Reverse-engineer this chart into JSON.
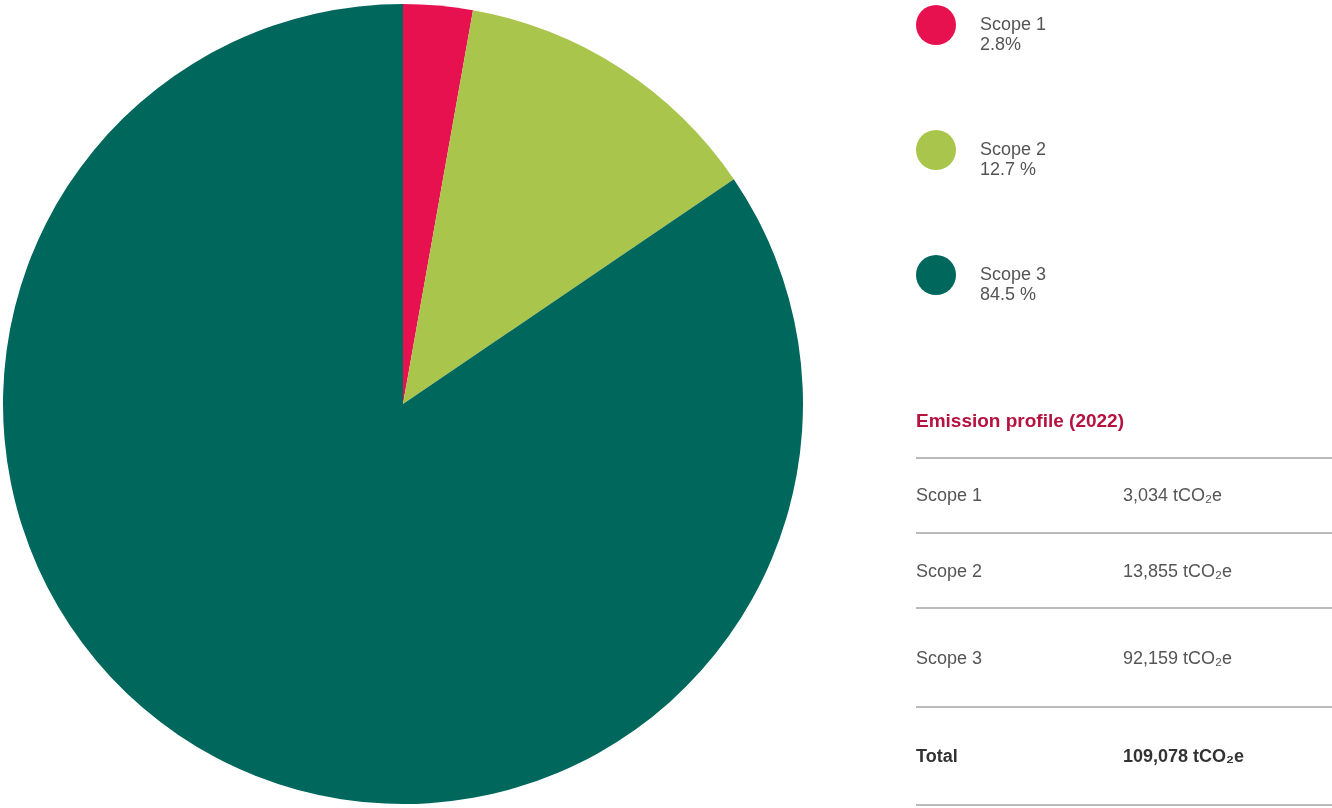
{
  "chart_data": {
    "type": "pie",
    "categories": [
      "Scope 1",
      "Scope 2",
      "Scope 3"
    ],
    "values": [
      2.8,
      12.7,
      84.5
    ],
    "value_labels": [
      "2.8%",
      "12.7 %",
      "84.5 %"
    ],
    "colors": [
      "#e8114f",
      "#a9c54b",
      "#00675d"
    ],
    "legend": "right",
    "title": "Emission profile (2022)",
    "annotations": [
      "Scope 1",
      "3,034 tCO₂e",
      "Scope 2",
      "13,855 tCO₂e",
      "Scope 3",
      "92,159 tCO₂e",
      "Total",
      "109,078 tCO₂e"
    ]
  }
}
